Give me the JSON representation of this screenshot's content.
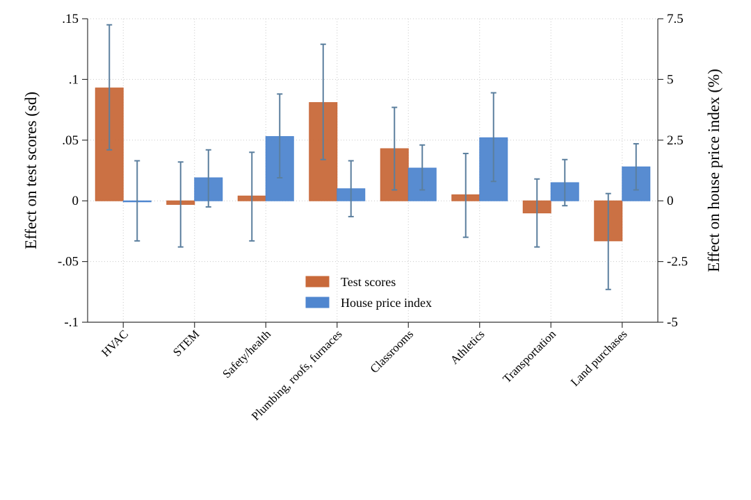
{
  "chart_data": {
    "type": "bar",
    "categories": [
      "HVAC",
      "STEM",
      "Safety/health",
      "Plumbing, roofs, furnaces",
      "Classrooms",
      "Athletics",
      "Transportation",
      "Land purchases"
    ],
    "series": [
      {
        "name": "Test scores",
        "axis": "left",
        "color": "#c8693a",
        "values": [
          0.093,
          -0.003,
          0.004,
          0.081,
          0.043,
          0.005,
          -0.01,
          -0.033
        ],
        "ci_low": [
          0.042,
          -0.038,
          -0.033,
          0.034,
          0.009,
          -0.03,
          -0.038,
          -0.073
        ],
        "ci_high": [
          0.145,
          0.032,
          0.04,
          0.129,
          0.077,
          0.039,
          0.018,
          0.006
        ]
      },
      {
        "name": "House price index",
        "axis": "right",
        "color": "#4f86cf",
        "values": [
          0.0,
          0.95,
          2.65,
          0.5,
          1.35,
          2.6,
          0.75,
          1.4
        ],
        "ci_low": [
          -1.65,
          -0.25,
          0.95,
          -0.65,
          0.45,
          0.8,
          -0.2,
          0.45
        ],
        "ci_high": [
          1.65,
          2.1,
          4.4,
          1.65,
          2.3,
          4.45,
          1.7,
          2.35
        ]
      }
    ],
    "error_bar_color": "#5b7f9e",
    "ylabel": "Effect on test scores (sd)",
    "y2label": "Effect on house price index (%)",
    "ylim": [
      -0.1,
      0.15
    ],
    "y2lim": [
      -5,
      7.5
    ],
    "yticks": [
      {
        "value": 0.15,
        "label": ".15"
      },
      {
        "value": 0.1,
        "label": ".1"
      },
      {
        "value": 0.05,
        "label": ".05"
      },
      {
        "value": 0,
        "label": "0"
      },
      {
        "value": -0.05,
        "label": "-.05"
      },
      {
        "value": -0.1,
        "label": "-.1"
      }
    ],
    "y2ticks": [
      {
        "value": 7.5,
        "label": "7.5"
      },
      {
        "value": 5,
        "label": "5"
      },
      {
        "value": 2.5,
        "label": "2.5"
      },
      {
        "value": 0,
        "label": "0"
      },
      {
        "value": -2.5,
        "label": "-2.5"
      },
      {
        "value": -5,
        "label": "-5"
      }
    ],
    "grid": true,
    "legend_position": "bottom-center"
  }
}
